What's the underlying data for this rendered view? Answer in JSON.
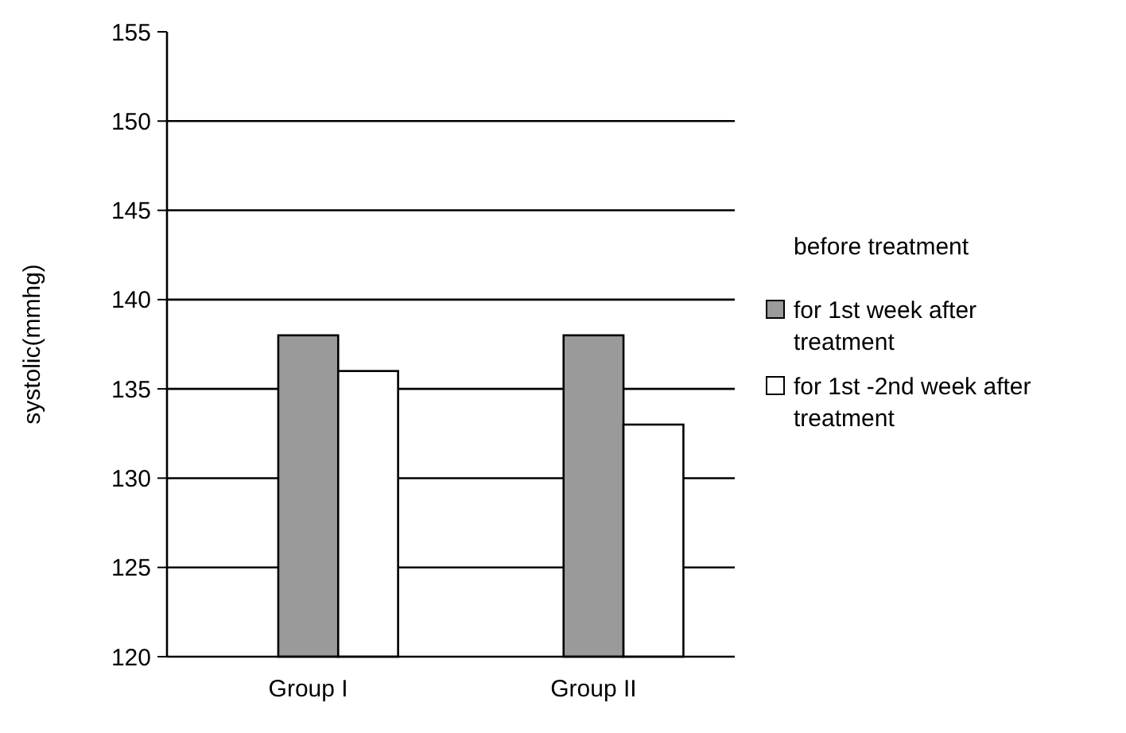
{
  "chart_data": {
    "type": "bar",
    "ylabel": "systolic(mmhg)",
    "categories": [
      "Group I",
      "Group II"
    ],
    "series": [
      {
        "name": "before treatment",
        "values": [
          null,
          null
        ]
      },
      {
        "name": "for 1st week after treatment",
        "color": "#9a9a9a",
        "values": [
          138,
          138
        ]
      },
      {
        "name": "for 1st -2nd week after treatment",
        "color": "#ffffff",
        "values": [
          136,
          133
        ]
      }
    ],
    "ylim": [
      120,
      155
    ],
    "yticks": [
      120,
      125,
      130,
      135,
      140,
      145,
      150,
      155
    ],
    "grid": "y",
    "legend": "right"
  }
}
